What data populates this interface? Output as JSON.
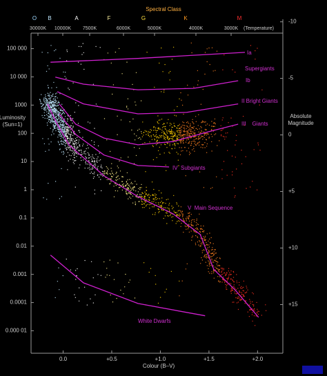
{
  "chart_data": {
    "type": "line",
    "x_label": "Colour (B–V)",
    "y_label": [
      "Luminosity",
      "(Sun=1)"
    ],
    "y2_label": [
      "Absolute",
      "Magnitude"
    ],
    "log_y": true,
    "xlim": [
      -0.33,
      2.26
    ],
    "ylim": [
      1.6e-06,
      980000
    ],
    "y2lim": [
      -10.1,
      19.3
    ],
    "xticks": [
      {
        "value": 0,
        "label": "0.0"
      },
      {
        "value": 0.5,
        "label": "+0.5"
      },
      {
        "value": 1,
        "label": "+1.0"
      },
      {
        "value": 1.5,
        "label": "+1.5"
      },
      {
        "value": 2,
        "label": "+2.0"
      }
    ],
    "yticks": [
      {
        "value": 100000,
        "label": "100 000"
      },
      {
        "value": 10000,
        "label": "10 000"
      },
      1000,
      100,
      10,
      1,
      0.1,
      0.01,
      0.001,
      0.0001,
      {
        "value": 1e-05,
        "label": "0.000 01"
      }
    ],
    "y2ticks": [
      -10,
      -5,
      0,
      {
        "value": 5,
        "label": "+5"
      },
      {
        "value": 10,
        "label": "+10"
      },
      {
        "value": 15,
        "label": "+15"
      }
    ],
    "top_axis": {
      "title": "Spectral Class",
      "classes": [
        "O",
        "B",
        "A",
        "F",
        "G",
        "K",
        "M"
      ],
      "class_colors": [
        "#9fd8ff",
        "#bfe8ff",
        "#ffffff",
        "#fff3a0",
        "#ffe040",
        "#ff9a20",
        "#ff3030"
      ],
      "temperatures": [
        "30000K",
        "10000K",
        "7500K",
        "6000K",
        "5000K",
        "4000K",
        "3000K",
        "(Temperature)"
      ]
    },
    "annotations": [
      "Supergiants"
    ],
    "series": [
      {
        "name": "Ia",
        "color": "#d020d0",
        "x": [
          -0.13,
          0.77,
          1.87
        ],
        "values": [
          33000,
          45000,
          74000
        ]
      },
      {
        "name": "Ib",
        "color": "#d020d0",
        "x": [
          -0.08,
          0.21,
          0.77,
          1.34,
          1.8
        ],
        "values": [
          9800,
          5500,
          3500,
          3900,
          7300
        ]
      },
      {
        "name": "II Bright Giants",
        "color": "#d020d0",
        "x": [
          -0.06,
          0.21,
          0.77,
          1.27,
          1.8
        ],
        "values": [
          3000,
          1100,
          490,
          550,
          1100
        ]
      },
      {
        "name": "III    Giants",
        "color": "#d020d0",
        "x": [
          -0.04,
          0.13,
          0.42,
          0.77,
          1.13,
          1.48,
          1.8
        ],
        "values": [
          1100,
          210,
          68,
          39,
          51,
          110,
          210
        ]
      },
      {
        "name": "IV  Subgiants",
        "color": "#d020d0",
        "x": [
          -0.04,
          0.13,
          0.42,
          0.77,
          1.09
        ],
        "values": [
          490,
          91,
          17,
          7.2,
          6.4
        ]
      },
      {
        "name": "V  Main Sequence",
        "color": "#d020d0",
        "x": [
          -0.16,
          -0.08,
          0.06,
          0.42,
          0.77,
          1.13,
          1.41,
          1.55,
          1.77,
          2.01
        ],
        "values": [
          1100,
          280,
          39,
          3.1,
          0.57,
          0.14,
          0.026,
          0.0015,
          0.00028,
          3e-05
        ]
      },
      {
        "name": "White Dwarfs",
        "color": "#d020d0",
        "x": [
          -0.13,
          0.21,
          0.77,
          1.46
        ],
        "values": [
          0.0048,
          0.0005,
          9.3e-05,
          3.4e-05
        ]
      }
    ]
  }
}
